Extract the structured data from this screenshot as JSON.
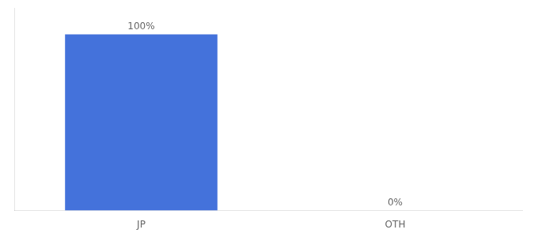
{
  "chart_data": {
    "type": "bar",
    "categories": [
      "JP",
      "OTH"
    ],
    "values": [
      100,
      0
    ],
    "value_labels": [
      "100%",
      "0%"
    ],
    "data_labels": true,
    "color": "#4472db",
    "ylim": [
      0,
      115
    ],
    "grid": false,
    "tick_labels": "x"
  }
}
